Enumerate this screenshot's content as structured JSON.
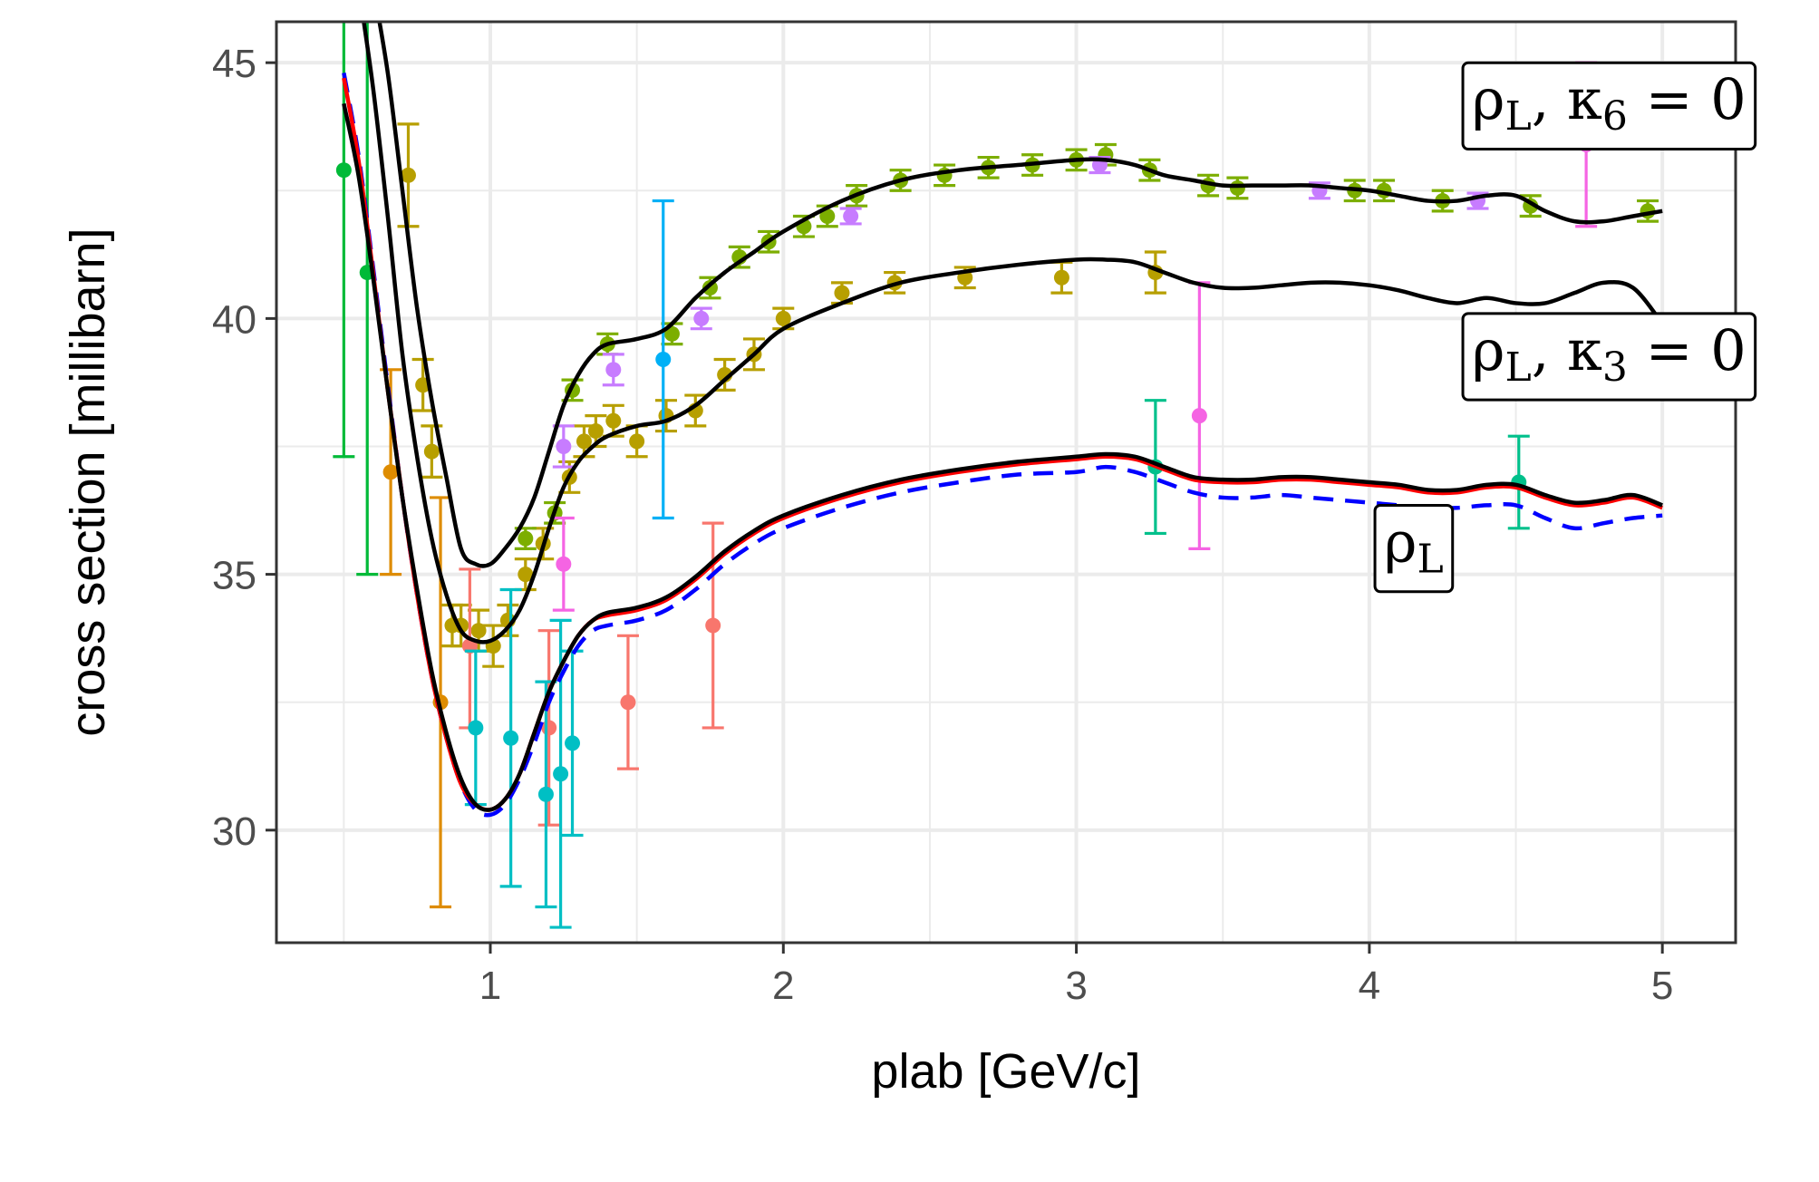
{
  "chart_data": {
    "type": "line",
    "xlabel": "plab [GeV/c]",
    "ylabel": "cross section [millibarn]",
    "xlim": [
      0.27,
      5.25
    ],
    "ylim": [
      27.8,
      45.8
    ],
    "x_ticks": [
      1,
      2,
      3,
      4,
      5
    ],
    "x_tick_labels": [
      "1",
      "2",
      "3",
      "4",
      "5"
    ],
    "y_ticks": [
      30,
      35,
      40,
      45
    ],
    "y_tick_labels": [
      "30",
      "35",
      "40",
      "45"
    ],
    "grid": true,
    "curve_labels": [
      {
        "base": "ρ",
        "sub1": "L",
        "mid": ", κ",
        "sub2": "6",
        "tail": " = 0",
        "anchor": [
          4.35,
          43.9
        ]
      },
      {
        "base": "ρ",
        "sub1": "L",
        "mid": ", κ",
        "sub2": "3",
        "tail": " = 0",
        "anchor": [
          4.35,
          39.0
        ]
      },
      {
        "base": "ρ",
        "sub1": "L",
        "mid": "",
        "sub2": "",
        "tail": "",
        "anchor": [
          4.05,
          35.25
        ]
      }
    ],
    "series": [
      {
        "style": "solid",
        "color": "#000000",
        "x": [
          0.6,
          0.65,
          0.7,
          0.75,
          0.8,
          0.85,
          0.9,
          0.95,
          1.0,
          1.05,
          1.1,
          1.15,
          1.2,
          1.25,
          1.3,
          1.35,
          1.4,
          1.5,
          1.6,
          1.7,
          1.8,
          1.9,
          2.0,
          2.2,
          2.4,
          2.6,
          2.8,
          3.0,
          3.1,
          3.2,
          3.3,
          3.4,
          3.5,
          3.6,
          3.7,
          3.8,
          3.9,
          4.0,
          4.1,
          4.2,
          4.3,
          4.4,
          4.5,
          4.6,
          4.7,
          4.8,
          4.9,
          5.0
        ],
        "y": [
          46.5,
          44.8,
          42.5,
          40.2,
          38.4,
          36.9,
          35.5,
          35.2,
          35.2,
          35.5,
          35.9,
          36.5,
          37.4,
          38.3,
          38.9,
          39.3,
          39.5,
          39.6,
          39.8,
          40.4,
          40.9,
          41.3,
          41.7,
          42.3,
          42.7,
          42.9,
          43.0,
          43.1,
          43.1,
          43.0,
          42.8,
          42.7,
          42.6,
          42.6,
          42.6,
          42.6,
          42.55,
          42.5,
          42.4,
          42.3,
          42.3,
          42.4,
          42.4,
          42.1,
          41.9,
          41.9,
          42.0,
          42.1
        ]
      },
      {
        "style": "solid",
        "color": "#000000",
        "x": [
          0.55,
          0.6,
          0.65,
          0.7,
          0.75,
          0.8,
          0.85,
          0.9,
          0.95,
          1.0,
          1.05,
          1.1,
          1.15,
          1.2,
          1.25,
          1.3,
          1.35,
          1.4,
          1.5,
          1.6,
          1.7,
          1.8,
          1.9,
          2.0,
          2.2,
          2.4,
          2.6,
          2.8,
          3.0,
          3.1,
          3.2,
          3.3,
          3.4,
          3.5,
          3.6,
          3.7,
          3.8,
          3.9,
          4.0,
          4.1,
          4.2,
          4.3,
          4.4,
          4.5,
          4.6,
          4.7,
          4.8,
          4.9,
          5.0
        ],
        "y": [
          46.5,
          44.5,
          42.0,
          39.3,
          37.3,
          35.7,
          34.6,
          33.9,
          33.7,
          33.7,
          33.9,
          34.3,
          35.0,
          35.9,
          36.7,
          37.2,
          37.5,
          37.7,
          37.9,
          38.0,
          38.3,
          38.8,
          39.3,
          39.8,
          40.3,
          40.7,
          40.9,
          41.05,
          41.15,
          41.15,
          41.1,
          40.9,
          40.7,
          40.6,
          40.6,
          40.65,
          40.7,
          40.7,
          40.65,
          40.55,
          40.4,
          40.3,
          40.4,
          40.3,
          40.3,
          40.5,
          40.7,
          40.6,
          39.9
        ]
      },
      {
        "style": "dashed",
        "color": "#0000ff",
        "x": [
          0.5,
          0.55,
          0.6,
          0.65,
          0.7,
          0.75,
          0.8,
          0.85,
          0.9,
          0.95,
          1.0,
          1.05,
          1.1,
          1.15,
          1.2,
          1.25,
          1.3,
          1.35,
          1.4,
          1.5,
          1.6,
          1.7,
          1.8,
          1.9,
          2.0,
          2.2,
          2.4,
          2.6,
          2.8,
          3.0,
          3.1,
          3.2,
          3.3,
          3.4,
          3.5,
          3.6,
          3.7,
          3.8,
          3.9,
          4.0,
          4.1,
          4.2,
          4.3,
          4.4,
          4.5,
          4.6,
          4.7,
          4.8,
          4.9,
          5.0
        ],
        "y": [
          44.8,
          43.2,
          41.0,
          38.7,
          36.5,
          34.6,
          33.0,
          31.8,
          30.9,
          30.4,
          30.3,
          30.5,
          31.0,
          31.7,
          32.5,
          33.1,
          33.6,
          33.9,
          34.0,
          34.1,
          34.3,
          34.7,
          35.2,
          35.6,
          35.9,
          36.3,
          36.6,
          36.8,
          36.95,
          37.0,
          37.1,
          37.0,
          36.8,
          36.6,
          36.5,
          36.5,
          36.55,
          36.5,
          36.45,
          36.4,
          36.35,
          36.3,
          36.3,
          36.35,
          36.35,
          36.1,
          35.9,
          36.0,
          36.1,
          36.15
        ]
      },
      {
        "style": "solid",
        "color": "#ff0000",
        "x": [
          0.5,
          0.55,
          0.6,
          0.65,
          0.7,
          0.75,
          0.8,
          0.85,
          0.9,
          0.95,
          1.0,
          1.05,
          1.1,
          1.15,
          1.2,
          1.25,
          1.3,
          1.35,
          1.4,
          1.5,
          1.6,
          1.7,
          1.8,
          1.9,
          2.0,
          2.2,
          2.4,
          2.6,
          2.8,
          3.0,
          3.1,
          3.2,
          3.3,
          3.4,
          3.5,
          3.6,
          3.7,
          3.8,
          3.9,
          4.0,
          4.1,
          4.2,
          4.3,
          4.4,
          4.5,
          4.6,
          4.7,
          4.8,
          4.9,
          5.0
        ],
        "y": [
          44.7,
          43.1,
          40.9,
          38.6,
          36.5,
          34.6,
          33.0,
          31.8,
          30.9,
          30.5,
          30.4,
          30.6,
          31.1,
          31.9,
          32.7,
          33.3,
          33.8,
          34.1,
          34.2,
          34.3,
          34.5,
          34.9,
          35.4,
          35.8,
          36.1,
          36.5,
          36.8,
          37.0,
          37.15,
          37.25,
          37.3,
          37.25,
          37.05,
          36.85,
          36.8,
          36.8,
          36.85,
          36.85,
          36.8,
          36.75,
          36.7,
          36.6,
          36.6,
          36.7,
          36.7,
          36.5,
          36.35,
          36.4,
          36.5,
          36.3
        ]
      },
      {
        "style": "solid",
        "color": "#000000",
        "x": [
          0.5,
          0.55,
          0.6,
          0.65,
          0.7,
          0.75,
          0.8,
          0.85,
          0.9,
          0.95,
          1.0,
          1.05,
          1.1,
          1.15,
          1.2,
          1.25,
          1.3,
          1.35,
          1.4,
          1.5,
          1.6,
          1.7,
          1.8,
          1.9,
          2.0,
          2.2,
          2.4,
          2.6,
          2.8,
          3.0,
          3.1,
          3.2,
          3.3,
          3.4,
          3.5,
          3.6,
          3.7,
          3.8,
          3.9,
          4.0,
          4.1,
          4.2,
          4.3,
          4.4,
          4.5,
          4.6,
          4.7,
          4.8,
          4.9,
          5.0
        ],
        "y": [
          44.2,
          42.8,
          40.8,
          38.6,
          36.5,
          34.7,
          33.1,
          31.9,
          31.0,
          30.5,
          30.4,
          30.6,
          31.1,
          31.9,
          32.7,
          33.3,
          33.8,
          34.1,
          34.25,
          34.35,
          34.55,
          34.95,
          35.45,
          35.85,
          36.15,
          36.55,
          36.85,
          37.05,
          37.2,
          37.3,
          37.35,
          37.3,
          37.1,
          36.9,
          36.85,
          36.85,
          36.9,
          36.9,
          36.85,
          36.8,
          36.75,
          36.65,
          36.65,
          36.75,
          36.75,
          36.55,
          36.4,
          36.45,
          36.55,
          36.35
        ]
      }
    ],
    "error_bars": [
      {
        "color": "#00ba38",
        "points": [
          [
            0.5,
            42.9,
            37.3,
            48.5
          ],
          [
            0.58,
            40.9,
            35.0,
            47.0
          ]
        ]
      },
      {
        "color": "#de8c00",
        "points": [
          [
            0.66,
            37.0,
            35.0,
            39.0
          ],
          [
            0.83,
            32.5,
            28.5,
            36.5
          ]
        ]
      },
      {
        "color": "#b79f00",
        "points": [
          [
            0.72,
            42.8,
            41.8,
            43.8
          ],
          [
            0.77,
            38.7,
            38.2,
            39.2
          ],
          [
            0.8,
            37.4,
            36.9,
            37.9
          ],
          [
            0.87,
            34.0,
            33.6,
            34.4
          ],
          [
            0.9,
            34.0,
            33.6,
            34.4
          ],
          [
            0.96,
            33.9,
            33.5,
            34.3
          ],
          [
            1.01,
            33.6,
            33.2,
            34.0
          ],
          [
            1.06,
            34.1,
            33.8,
            34.4
          ],
          [
            1.12,
            35.0,
            34.7,
            35.3
          ],
          [
            1.18,
            35.6,
            35.3,
            35.9
          ],
          [
            1.27,
            36.9,
            36.6,
            37.2
          ],
          [
            1.32,
            37.6,
            37.3,
            37.9
          ],
          [
            1.36,
            37.8,
            37.5,
            38.1
          ],
          [
            1.42,
            38.0,
            37.7,
            38.3
          ],
          [
            1.5,
            37.6,
            37.3,
            37.9
          ],
          [
            1.6,
            38.1,
            37.8,
            38.4
          ],
          [
            1.7,
            38.2,
            37.9,
            38.5
          ],
          [
            1.8,
            38.9,
            38.6,
            39.2
          ],
          [
            1.9,
            39.3,
            39.0,
            39.6
          ],
          [
            2.0,
            40.0,
            39.8,
            40.2
          ],
          [
            2.2,
            40.5,
            40.3,
            40.7
          ],
          [
            2.38,
            40.7,
            40.5,
            40.9
          ],
          [
            2.62,
            40.8,
            40.6,
            41.0
          ],
          [
            2.95,
            40.8,
            40.5,
            41.1
          ],
          [
            3.27,
            40.9,
            40.5,
            41.3
          ]
        ]
      },
      {
        "color": "#7cae00",
        "points": [
          [
            1.12,
            35.7,
            35.5,
            35.9
          ],
          [
            1.22,
            36.2,
            36.0,
            36.4
          ],
          [
            1.28,
            38.6,
            38.4,
            38.8
          ],
          [
            1.4,
            39.5,
            39.3,
            39.7
          ],
          [
            1.62,
            39.7,
            39.5,
            39.9
          ],
          [
            1.75,
            40.6,
            40.4,
            40.8
          ],
          [
            1.85,
            41.2,
            41.0,
            41.4
          ],
          [
            1.95,
            41.5,
            41.3,
            41.7
          ],
          [
            2.07,
            41.8,
            41.6,
            42.0
          ],
          [
            2.15,
            42.0,
            41.8,
            42.2
          ],
          [
            2.25,
            42.4,
            42.2,
            42.6
          ],
          [
            2.4,
            42.7,
            42.5,
            42.9
          ],
          [
            2.55,
            42.8,
            42.6,
            43.0
          ],
          [
            2.7,
            42.95,
            42.75,
            43.15
          ],
          [
            2.85,
            43.0,
            42.8,
            43.2
          ],
          [
            3.0,
            43.1,
            42.9,
            43.3
          ],
          [
            3.1,
            43.2,
            43.0,
            43.4
          ],
          [
            3.25,
            42.9,
            42.7,
            43.1
          ],
          [
            3.45,
            42.6,
            42.4,
            42.8
          ],
          [
            3.55,
            42.55,
            42.35,
            42.75
          ],
          [
            3.95,
            42.5,
            42.3,
            42.7
          ],
          [
            4.05,
            42.5,
            42.3,
            42.7
          ],
          [
            4.25,
            42.3,
            42.1,
            42.5
          ],
          [
            4.55,
            42.2,
            42.0,
            42.4
          ],
          [
            4.95,
            42.1,
            41.9,
            42.3
          ]
        ]
      },
      {
        "color": "#c77cff",
        "points": [
          [
            1.25,
            37.5,
            37.1,
            37.9
          ],
          [
            1.42,
            39.0,
            38.7,
            39.3
          ],
          [
            1.72,
            40.0,
            39.8,
            40.2
          ],
          [
            2.23,
            42.0,
            41.85,
            42.15
          ],
          [
            3.08,
            43.0,
            42.85,
            43.15
          ],
          [
            3.83,
            42.5,
            42.35,
            42.65
          ],
          [
            4.37,
            42.3,
            42.15,
            42.45
          ]
        ]
      },
      {
        "color": "#f8766d",
        "points": [
          [
            0.93,
            33.6,
            32.0,
            35.1
          ],
          [
            1.2,
            32.0,
            30.1,
            33.9
          ],
          [
            1.47,
            32.5,
            31.2,
            33.8
          ],
          [
            1.76,
            34.0,
            32.0,
            36.0
          ]
        ]
      },
      {
        "color": "#00bfc4",
        "points": [
          [
            0.95,
            32.0,
            30.5,
            33.5
          ],
          [
            1.07,
            31.8,
            28.9,
            34.7
          ],
          [
            1.19,
            30.7,
            28.5,
            32.9
          ],
          [
            1.24,
            31.1,
            28.1,
            34.1
          ],
          [
            1.28,
            31.7,
            29.9,
            33.5
          ]
        ]
      },
      {
        "color": "#00b0f6",
        "points": [
          [
            1.59,
            39.2,
            36.1,
            42.3
          ]
        ]
      },
      {
        "color": "#f564e3",
        "points": [
          [
            1.25,
            35.2,
            34.3,
            36.1
          ],
          [
            3.42,
            38.1,
            35.5,
            40.7
          ],
          [
            4.74,
            43.4,
            41.8,
            45.0
          ]
        ]
      },
      {
        "color": "#00c08b",
        "points": [
          [
            3.27,
            37.1,
            35.8,
            38.4
          ],
          [
            4.51,
            36.8,
            35.9,
            37.7
          ]
        ]
      }
    ]
  }
}
